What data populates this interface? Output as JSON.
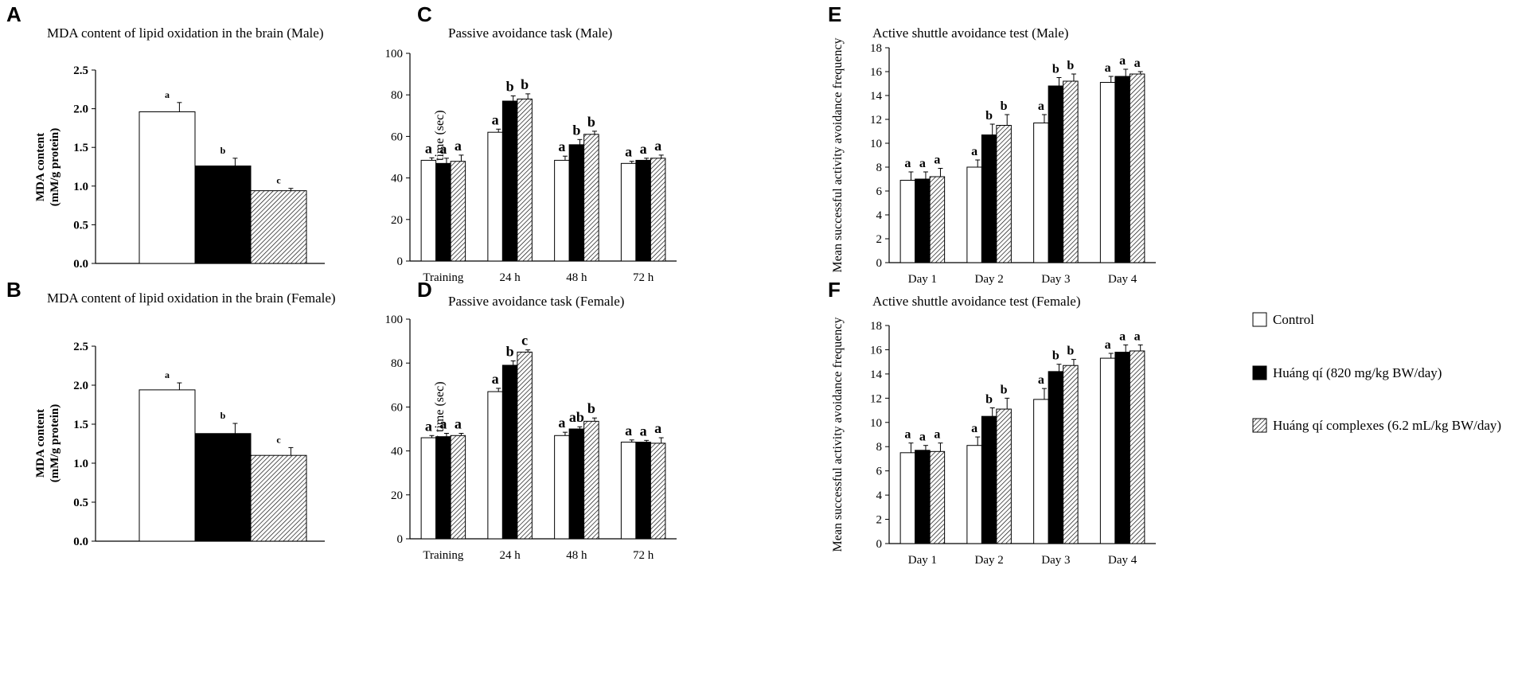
{
  "colors": {
    "control": "#ffffff",
    "huangqi": "#000000",
    "complex_hatch": "#000000",
    "axis": "#000000"
  },
  "legend": {
    "items": [
      {
        "label": "Control",
        "pattern": "white"
      },
      {
        "label": "Huáng qí (820 mg/kg BW/day)",
        "pattern": "black"
      },
      {
        "label": "Huáng qí complexes (6.2 mL/kg BW/day)",
        "pattern": "hatch"
      }
    ]
  },
  "chart_data": [
    {
      "id": "A",
      "letter": "A",
      "type": "bar",
      "title": "MDA content of lipid oxidation in the brain (Male)",
      "ylabel": [
        "MDA content",
        "(mM/g protein)"
      ],
      "ylim": [
        0,
        2.5
      ],
      "yticks": [
        "0.0",
        "0.5",
        "1.0",
        "1.5",
        "2.0",
        "2.5"
      ],
      "categories": [
        ""
      ],
      "series": [
        {
          "name": "Control",
          "values": [
            1.96
          ],
          "errors": [
            0.12
          ],
          "sig": [
            "a"
          ]
        },
        {
          "name": "Huáng qí (820 mg/kg BW/day)",
          "values": [
            1.26
          ],
          "errors": [
            0.1
          ],
          "sig": [
            "b"
          ]
        },
        {
          "name": "Huáng qí complexes (6.2 mL/kg BW/day)",
          "values": [
            0.94
          ],
          "errors": [
            0.03
          ],
          "sig": [
            "c"
          ]
        }
      ],
      "annotations": [
        "c"
      ]
    },
    {
      "id": "B",
      "letter": "B",
      "type": "bar",
      "title": "MDA content of lipid oxidation in the brain (Female)",
      "ylabel": [
        "MDA content",
        "(mM/g protein)"
      ],
      "ylim": [
        0,
        2.5
      ],
      "yticks": [
        "0.0",
        "0.5",
        "1.0",
        "1.5",
        "2.0",
        "2.5"
      ],
      "categories": [
        ""
      ],
      "series": [
        {
          "name": "Control",
          "values": [
            1.94
          ],
          "errors": [
            0.09
          ],
          "sig": [
            "a"
          ]
        },
        {
          "name": "Huáng qí (820 mg/kg BW/day)",
          "values": [
            1.38
          ],
          "errors": [
            0.13
          ],
          "sig": [
            "b"
          ]
        },
        {
          "name": "Huáng qí complexes (6.2 mL/kg BW/day)",
          "values": [
            1.1
          ],
          "errors": [
            0.1
          ],
          "sig": [
            "c"
          ]
        }
      ]
    },
    {
      "id": "C",
      "letter": "C",
      "type": "bar",
      "title": "Passive avoidance task (Male)",
      "ylabel": [
        "Latency time (sec)"
      ],
      "ylim": [
        0,
        100
      ],
      "yticks": [
        "0",
        "20",
        "40",
        "60",
        "80",
        "100"
      ],
      "categories": [
        "Training",
        "24 h",
        "48 h",
        "72 h"
      ],
      "series": [
        {
          "name": "Control",
          "values": [
            48.5,
            62,
            48.5,
            47
          ],
          "errors": [
            1.2,
            1.5,
            2.0,
            1.0
          ],
          "sig": [
            "a",
            "a",
            "a",
            "a"
          ]
        },
        {
          "name": "Huáng qí (820 mg/kg BW/day)",
          "values": [
            47,
            77,
            56,
            48.5
          ],
          "errors": [
            2.5,
            2.5,
            2.5,
            1.0
          ],
          "sig": [
            "a",
            "b",
            "b",
            "a"
          ]
        },
        {
          "name": "Huáng qí complexes (6.2 mL/kg BW/day)",
          "values": [
            48,
            78,
            61,
            49.5
          ],
          "errors": [
            3.0,
            2.5,
            1.5,
            1.5
          ],
          "sig": [
            "a",
            "b",
            "b",
            "a"
          ]
        }
      ]
    },
    {
      "id": "D",
      "letter": "D",
      "type": "bar",
      "title": "Passive avoidance task (Female)",
      "ylabel": [
        "Latency time (sec)"
      ],
      "ylim": [
        0,
        100
      ],
      "yticks": [
        "0",
        "20",
        "40",
        "60",
        "80",
        "100"
      ],
      "categories": [
        "Training",
        "24 h",
        "48 h",
        "72 h"
      ],
      "series": [
        {
          "name": "Control",
          "values": [
            46,
            67,
            47,
            44
          ],
          "errors": [
            1.0,
            1.5,
            1.5,
            1.0
          ],
          "sig": [
            "a",
            "a",
            "a",
            "a"
          ]
        },
        {
          "name": "Huáng qí (820 mg/kg BW/day)",
          "values": [
            46.5,
            79,
            50,
            44
          ],
          "errors": [
            1.5,
            2.0,
            1.0,
            0.8
          ],
          "sig": [
            "a",
            "b",
            "ab",
            "a"
          ]
        },
        {
          "name": "Huáng qí complexes (6.2 mL/kg BW/day)",
          "values": [
            47,
            85,
            53.5,
            43.5
          ],
          "errors": [
            1.0,
            1.0,
            1.5,
            2.5
          ],
          "sig": [
            "a",
            "c",
            "b",
            "a"
          ]
        }
      ]
    },
    {
      "id": "E",
      "letter": "E",
      "type": "bar",
      "title": "Active shuttle avoidance test (Male)",
      "ylabel": [
        "Mean successful activity avoidance frequency"
      ],
      "ylim": [
        0,
        18
      ],
      "yticks": [
        "0",
        "2",
        "4",
        "6",
        "8",
        "10",
        "12",
        "14",
        "16",
        "18"
      ],
      "categories": [
        "Day 1",
        "Day 2",
        "Day 3",
        "Day 4"
      ],
      "series": [
        {
          "name": "Control",
          "values": [
            6.9,
            8.0,
            11.7,
            15.1
          ],
          "errors": [
            0.7,
            0.6,
            0.7,
            0.5
          ],
          "sig": [
            "a",
            "a",
            "a",
            "a"
          ]
        },
        {
          "name": "Huáng qí (820 mg/kg BW/day)",
          "values": [
            7.0,
            10.7,
            14.8,
            15.6
          ],
          "errors": [
            0.6,
            0.9,
            0.7,
            0.6
          ],
          "sig": [
            "a",
            "b",
            "b",
            "a"
          ]
        },
        {
          "name": "Huáng qí complexes (6.2 mL/kg BW/day)",
          "values": [
            7.2,
            11.5,
            15.2,
            15.8
          ],
          "errors": [
            0.7,
            0.9,
            0.6,
            0.2
          ],
          "sig": [
            "a",
            "b",
            "b",
            "a"
          ]
        }
      ]
    },
    {
      "id": "F",
      "letter": "F",
      "type": "bar",
      "title": "Active shuttle avoidance test (Female)",
      "ylabel": [
        "Mean successful activity avoidance frequency"
      ],
      "ylim": [
        0,
        18
      ],
      "yticks": [
        "0",
        "2",
        "4",
        "6",
        "8",
        "10",
        "12",
        "14",
        "16",
        "18"
      ],
      "categories": [
        "Day 1",
        "Day 2",
        "Day 3",
        "Day 4"
      ],
      "series": [
        {
          "name": "Control",
          "values": [
            7.5,
            8.1,
            11.9,
            15.3
          ],
          "errors": [
            0.8,
            0.7,
            0.9,
            0.4
          ],
          "sig": [
            "a",
            "a",
            "a",
            "a"
          ]
        },
        {
          "name": "Huáng qí (820 mg/kg BW/day)",
          "values": [
            7.7,
            10.5,
            14.2,
            15.8
          ],
          "errors": [
            0.4,
            0.7,
            0.6,
            0.6
          ],
          "sig": [
            "a",
            "b",
            "b",
            "a"
          ]
        },
        {
          "name": "Huáng qí complexes (6.2 mL/kg BW/day)",
          "values": [
            7.6,
            11.1,
            14.7,
            15.9
          ],
          "errors": [
            0.7,
            0.9,
            0.5,
            0.5
          ],
          "sig": [
            "a",
            "b",
            "b",
            "a"
          ]
        }
      ]
    }
  ]
}
